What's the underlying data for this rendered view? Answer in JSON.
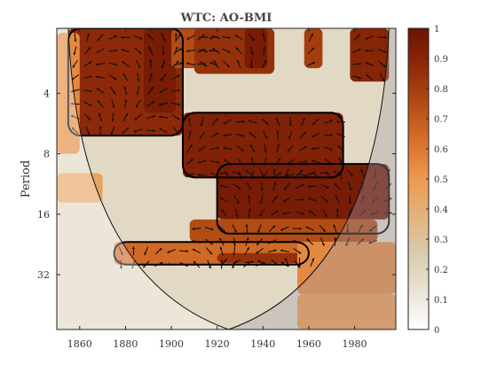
{
  "chart_data": {
    "type": "heatmap",
    "title": "WTC: AO-BMI",
    "xlabel": "",
    "ylabel": "Period",
    "x_range": [
      1850,
      1998
    ],
    "x_ticks": [
      1860,
      1880,
      1900,
      1920,
      1940,
      1960,
      1980
    ],
    "y_scale": "log2",
    "y_range": [
      1.9,
      60
    ],
    "y_ticks": [
      4,
      8,
      16,
      32
    ],
    "colorbar": {
      "range": [
        0,
        1
      ],
      "ticks": [
        0,
        0.1,
        0.2,
        0.3,
        0.4,
        0.5,
        0.6,
        0.7,
        0.8,
        0.9,
        1
      ],
      "colors": [
        "#ffffff",
        "#e9e4d6",
        "#d9ccaf",
        "#e3b37e",
        "#ec9a4f",
        "#d9702a",
        "#b24c14",
        "#8e2a08",
        "#6a1203"
      ]
    },
    "cone_of_influence": {
      "apex_year": 1925,
      "apex_period": 60,
      "top_left_year": 1855,
      "top_right_year": 1995
    },
    "coherence_regions": [
      {
        "year": [
          1855,
          1905
        ],
        "period": [
          1.9,
          6.5
        ],
        "value": 0.88
      },
      {
        "year": [
          1888,
          1902
        ],
        "period": [
          1.9,
          5.0
        ],
        "value": 0.95
      },
      {
        "year": [
          1900,
          1920
        ],
        "period": [
          1.9,
          3.0
        ],
        "value": 0.75
      },
      {
        "year": [
          1910,
          1945
        ],
        "period": [
          1.9,
          3.2
        ],
        "value": 0.85
      },
      {
        "year": [
          1932,
          1942
        ],
        "period": [
          1.9,
          3.0
        ],
        "value": 0.95
      },
      {
        "year": [
          1958,
          1966
        ],
        "period": [
          1.9,
          3.0
        ],
        "value": 0.8
      },
      {
        "year": [
          1978,
          1995
        ],
        "period": [
          1.9,
          3.5
        ],
        "value": 0.9
      },
      {
        "year": [
          1905,
          1975
        ],
        "period": [
          5.0,
          10.5
        ],
        "value": 0.92
      },
      {
        "year": [
          1920,
          1995
        ],
        "period": [
          9.0,
          17.0
        ],
        "value": 0.95
      },
      {
        "year": [
          1908,
          1990
        ],
        "period": [
          17.0,
          22.0
        ],
        "value": 0.75
      },
      {
        "year": [
          1875,
          1960
        ],
        "period": [
          22.0,
          28.5
        ],
        "value": 0.65
      },
      {
        "year": [
          1920,
          1965
        ],
        "period": [
          25.0,
          28.0
        ],
        "value": 0.85
      },
      {
        "year": [
          1955,
          1998
        ],
        "period": [
          22.0,
          40.0
        ],
        "value": 0.55
      },
      {
        "year": [
          1955,
          1998
        ],
        "period": [
          40.0,
          60.0
        ],
        "value": 0.5
      },
      {
        "year": [
          1850,
          1870
        ],
        "period": [
          10.0,
          14.0
        ],
        "value": 0.45
      },
      {
        "year": [
          1850,
          1860
        ],
        "period": [
          2.0,
          8.0
        ],
        "value": 0.55
      }
    ]
  }
}
